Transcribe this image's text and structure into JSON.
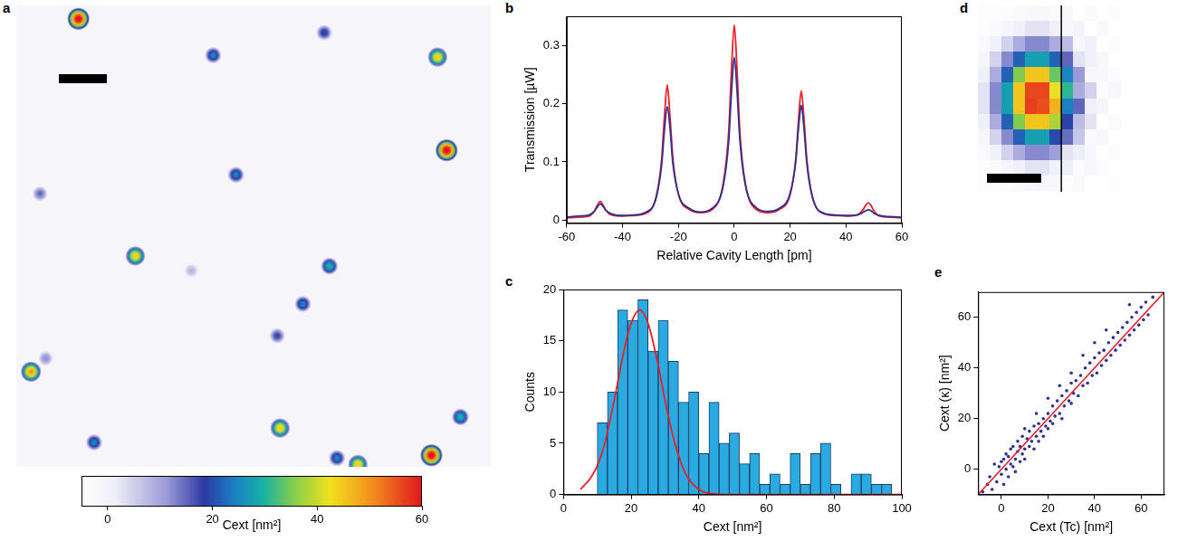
{
  "chart_data": [
    {
      "panel": "a",
      "type": "image",
      "xlim": [
        0,
        100
      ],
      "ylim": [
        0,
        100
      ],
      "tick_labels": false,
      "x": [
        13.1,
        41.5,
        64.9,
        88.8,
        90.7,
        46.3,
        5.0,
        25.1,
        66.0,
        60.4,
        55.0,
        3.1,
        6.2,
        93.6,
        55.6,
        16.4,
        67.6,
        72.0,
        87.5,
        36.9
      ],
      "y": [
        97.1,
        89.2,
        94.1,
        88.8,
        68.6,
        63.3,
        59.2,
        45.7,
        43.5,
        35.3,
        28.4,
        20.6,
        23.5,
        10.8,
        8.4,
        5.3,
        1.9,
        0.5,
        2.5,
        42.5
      ],
      "values": [
        62,
        25,
        20,
        45,
        62,
        25,
        15,
        45,
        30,
        25,
        18,
        50,
        12,
        30,
        45,
        25,
        25,
        45,
        62,
        8
      ],
      "colorbar": {
        "label": "Cext [nm²]",
        "range": [
          -5,
          60
        ],
        "ticks": [
          0,
          20,
          40,
          60
        ]
      }
    },
    {
      "panel": "b",
      "type": "line",
      "x_label": "Relative Cavity Length [pm]",
      "y_label": "Transmission [µW]",
      "xlim": [
        -60,
        60
      ],
      "xticks": [
        -60,
        -40,
        -20,
        0,
        20,
        40,
        60
      ],
      "ylim": [
        -0.005,
        0.35
      ],
      "yticks": [
        0,
        0.1,
        0.2,
        0.3
      ],
      "grid": false,
      "x": [
        -60,
        -56,
        -52,
        -50,
        -49,
        -48,
        -47,
        -46,
        -44,
        -40,
        -36,
        -32,
        -28,
        -26,
        -25,
        -24,
        -23,
        -22,
        -20,
        -16,
        -12,
        -8,
        -4,
        -2,
        -1,
        0,
        1,
        2,
        4,
        8,
        12,
        16,
        20,
        22,
        23,
        24,
        25,
        26,
        28,
        32,
        36,
        40,
        44,
        46,
        47,
        48,
        49,
        50,
        52,
        56,
        60
      ],
      "series": [
        {
          "color": "#2e3192",
          "values": [
            0.005,
            0.007,
            0.009,
            0.016,
            0.023,
            0.028,
            0.024,
            0.017,
            0.011,
            0.008,
            0.009,
            0.013,
            0.038,
            0.095,
            0.155,
            0.195,
            0.158,
            0.098,
            0.045,
            0.02,
            0.014,
            0.02,
            0.058,
            0.135,
            0.22,
            0.28,
            0.222,
            0.138,
            0.06,
            0.021,
            0.015,
            0.02,
            0.046,
            0.1,
            0.158,
            0.197,
            0.156,
            0.097,
            0.039,
            0.012,
            0.009,
            0.008,
            0.009,
            0.013,
            0.016,
            0.018,
            0.016,
            0.012,
            0.008,
            0.006,
            0.005
          ]
        },
        {
          "color": "#ee1c25",
          "values": [
            0.004,
            0.005,
            0.007,
            0.016,
            0.026,
            0.032,
            0.026,
            0.017,
            0.009,
            0.007,
            0.008,
            0.011,
            0.04,
            0.105,
            0.178,
            0.232,
            0.178,
            0.107,
            0.045,
            0.018,
            0.013,
            0.018,
            0.062,
            0.152,
            0.258,
            0.335,
            0.258,
            0.152,
            0.062,
            0.018,
            0.013,
            0.018,
            0.044,
            0.104,
            0.172,
            0.222,
            0.172,
            0.103,
            0.04,
            0.011,
            0.008,
            0.007,
            0.009,
            0.017,
            0.025,
            0.03,
            0.025,
            0.016,
            0.007,
            0.005,
            0.004
          ]
        }
      ]
    },
    {
      "panel": "c",
      "type": "histogram",
      "x_label": "Cext [nm²]",
      "y_label": "Counts",
      "xlim": [
        0,
        100
      ],
      "xticks": [
        0,
        20,
        40,
        60,
        80,
        100
      ],
      "ylim": [
        0,
        20
      ],
      "yticks": [
        0,
        5,
        10,
        15,
        20
      ],
      "grid": false,
      "bins": [
        10,
        13,
        16,
        19,
        22,
        25,
        28,
        31,
        34,
        37,
        40,
        43,
        46,
        49,
        52,
        55,
        58,
        61,
        64,
        67,
        70,
        73,
        76,
        79,
        82,
        85,
        88,
        91,
        94,
        97
      ],
      "counts": [
        7,
        10,
        18,
        17,
        19,
        14,
        17,
        13,
        9,
        10,
        4,
        9,
        5,
        6,
        3,
        4,
        1,
        2,
        1,
        4,
        1,
        4,
        5,
        1,
        0,
        2,
        2,
        1,
        1
      ],
      "color": "#29abe2",
      "fit": {
        "color": "#ee1c25",
        "x": [
          5,
          8,
          10,
          12,
          15,
          18,
          20,
          22.5,
          25,
          28,
          30,
          33,
          36,
          40,
          45,
          50,
          60,
          80,
          100
        ],
        "values": [
          0.5,
          1.6,
          2.8,
          4.7,
          9.2,
          14.2,
          16.7,
          18,
          16.7,
          12.6,
          9.2,
          4.9,
          2.1,
          0.5,
          0.05,
          0,
          0,
          0,
          0
        ]
      }
    },
    {
      "panel": "d",
      "type": "heatmap",
      "xlim": [
        0,
        12
      ],
      "ylim": [
        0,
        12
      ],
      "tick_labels": false,
      "color_range": [
        0,
        1
      ],
      "divider_x": 7,
      "cells": [
        [
          0.01,
          0.01,
          0.02,
          0.03,
          0.04,
          0.04,
          0.03,
          0.05,
          0.0,
          0.03,
          0.0,
          0.02
        ],
        [
          0.01,
          0.03,
          0.06,
          0.09,
          0.12,
          0.12,
          0.09,
          0.04,
          0.07,
          0.0,
          0.03,
          0.0
        ],
        [
          0.03,
          0.08,
          0.15,
          0.22,
          0.27,
          0.27,
          0.22,
          0.19,
          0.05,
          0.08,
          0.0,
          0.02
        ],
        [
          0.06,
          0.15,
          0.27,
          0.41,
          0.5,
          0.5,
          0.41,
          0.31,
          0.12,
          0.09,
          0.04,
          0.0
        ],
        [
          0.09,
          0.22,
          0.41,
          0.62,
          0.77,
          0.77,
          0.6,
          0.46,
          0.25,
          0.05,
          0.05,
          0.02
        ],
        [
          0.12,
          0.27,
          0.5,
          0.77,
          0.94,
          0.94,
          0.72,
          0.55,
          0.22,
          0.15,
          0.02,
          0.04
        ],
        [
          0.12,
          0.27,
          0.5,
          0.77,
          0.95,
          0.93,
          0.8,
          0.45,
          0.31,
          0.09,
          0.06,
          0.0
        ],
        [
          0.09,
          0.22,
          0.41,
          0.62,
          0.77,
          0.77,
          0.66,
          0.37,
          0.19,
          0.12,
          0.0,
          0.03
        ],
        [
          0.06,
          0.15,
          0.27,
          0.41,
          0.5,
          0.5,
          0.38,
          0.3,
          0.17,
          0.03,
          0.04,
          0.0
        ],
        [
          0.03,
          0.08,
          0.15,
          0.22,
          0.27,
          0.27,
          0.24,
          0.12,
          0.1,
          0.05,
          0.0,
          0.02
        ],
        [
          0.01,
          0.03,
          0.06,
          0.09,
          0.12,
          0.12,
          0.08,
          0.09,
          0.02,
          0.04,
          0.02,
          0.0
        ],
        [
          0.01,
          0.01,
          0.02,
          0.03,
          0.04,
          0.04,
          0.05,
          0.01,
          0.03,
          0.0,
          0.0,
          0.01
        ]
      ]
    },
    {
      "panel": "e",
      "type": "scatter",
      "x_label": "Cext (Tc) [nm²]",
      "y_label": "Cext (κ) [nm²]",
      "xlim": [
        -10,
        70
      ],
      "xticks": [
        0,
        20,
        40,
        60
      ],
      "ylim": [
        -10,
        70
      ],
      "yticks": [
        0,
        20,
        40,
        60
      ],
      "grid": false,
      "color": "#2e3192",
      "marker": "circle",
      "x": [
        -5,
        -4,
        -3,
        -2,
        -1,
        0,
        0,
        1,
        1,
        2,
        2,
        3,
        3,
        4,
        4,
        5,
        5,
        6,
        6,
        7,
        7,
        8,
        8,
        9,
        9,
        10,
        10,
        11,
        12,
        12,
        13,
        14,
        14,
        15,
        16,
        16,
        17,
        18,
        18,
        19,
        20,
        20,
        21,
        22,
        22,
        23,
        24,
        25,
        26,
        26,
        27,
        28,
        29,
        30,
        30,
        31,
        32,
        33,
        34,
        35,
        36,
        37,
        38,
        39,
        40,
        41,
        42,
        43,
        44,
        45,
        46,
        47,
        48,
        49,
        50,
        51,
        52,
        53,
        54,
        55,
        56,
        57,
        58,
        59,
        60,
        61,
        62,
        63,
        -6,
        -8,
        15,
        25,
        35,
        45,
        55,
        65,
        10,
        20,
        30,
        40
      ],
      "values": [
        -3,
        -8,
        2,
        -5,
        1,
        -2,
        3,
        -6,
        4,
        0,
        6,
        -3,
        5,
        2,
        8,
        1,
        9,
        4,
        -1,
        7,
        11,
        3,
        9,
        6,
        13,
        8,
        4,
        12,
        9,
        15,
        11,
        8,
        17,
        13,
        18,
        11,
        15,
        20,
        13,
        17,
        22,
        16,
        19,
        25,
        18,
        21,
        27,
        22,
        29,
        20,
        25,
        31,
        27,
        34,
        26,
        30,
        35,
        29,
        37,
        33,
        40,
        34,
        42,
        37,
        44,
        38,
        46,
        41,
        47,
        43,
        50,
        45,
        52,
        47,
        54,
        49,
        56,
        51,
        58,
        53,
        60,
        55,
        62,
        57,
        64,
        59,
        66,
        61,
        -6,
        -9,
        22,
        33,
        45,
        55,
        65,
        68,
        16,
        28,
        38,
        50
      ],
      "reference_line": {
        "color": "#ee1c25",
        "x": [
          -10,
          70
        ],
        "values": [
          -10,
          70
        ]
      }
    }
  ]
}
